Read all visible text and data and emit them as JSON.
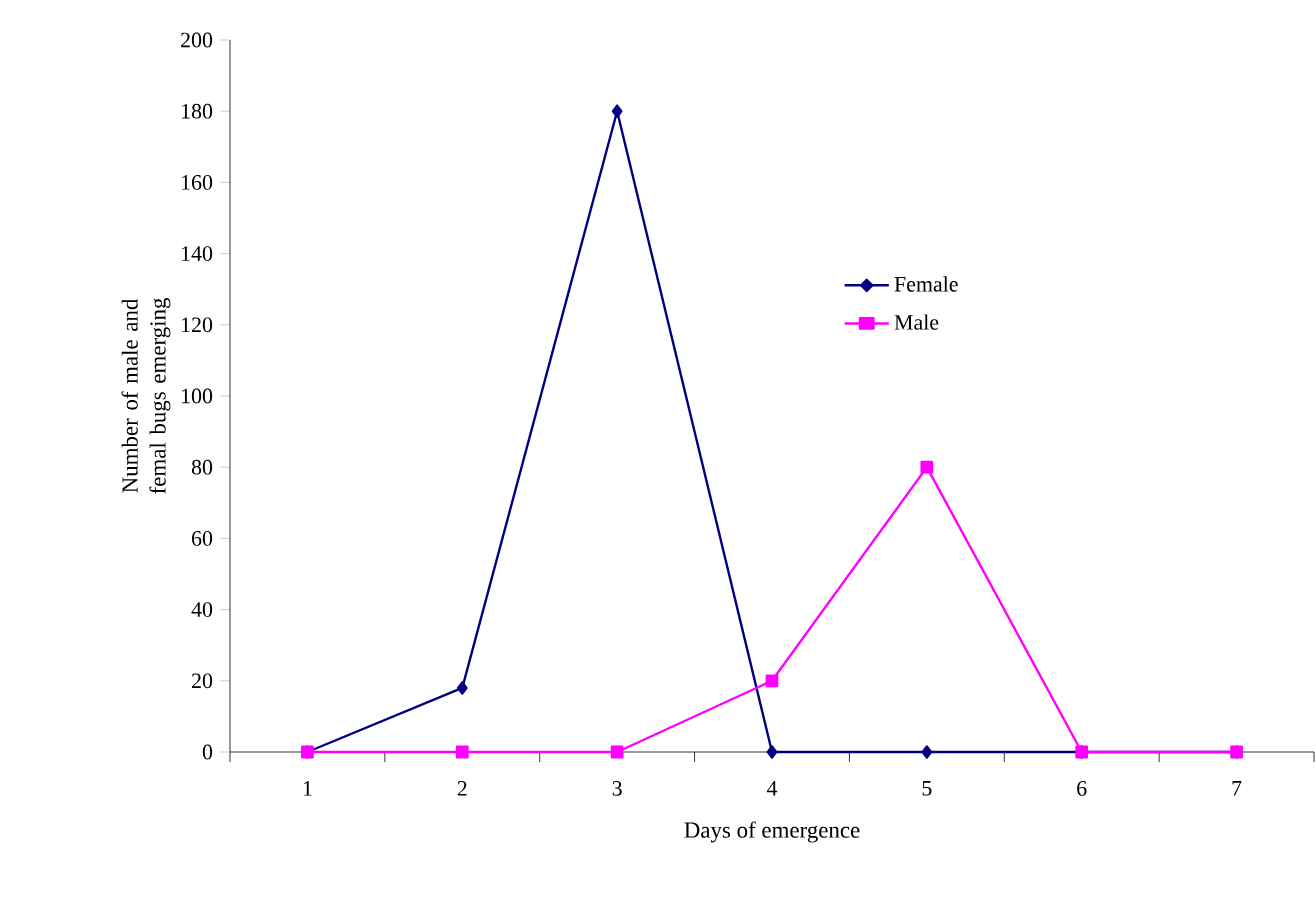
{
  "chart_data": {
    "type": "line",
    "xlabel": "Days of emergence",
    "ylabel": "Number of male and femal bugs emerging",
    "categories": [
      "1",
      "2",
      "3",
      "4",
      "5",
      "6",
      "7"
    ],
    "series": [
      {
        "name": "Female",
        "color": "#000080",
        "marker": "diamond",
        "values": [
          0,
          18,
          180,
          0,
          0,
          0,
          0
        ]
      },
      {
        "name": "Male",
        "color": "#ff00ff",
        "marker": "square",
        "values": [
          0,
          0,
          0,
          20,
          80,
          0,
          0
        ]
      }
    ],
    "ylim": [
      0,
      200
    ],
    "yticks": [
      0,
      20,
      40,
      60,
      80,
      100,
      120,
      140,
      160,
      180,
      200
    ],
    "grid": false,
    "legend": "top right",
    "line_style": "solid"
  }
}
